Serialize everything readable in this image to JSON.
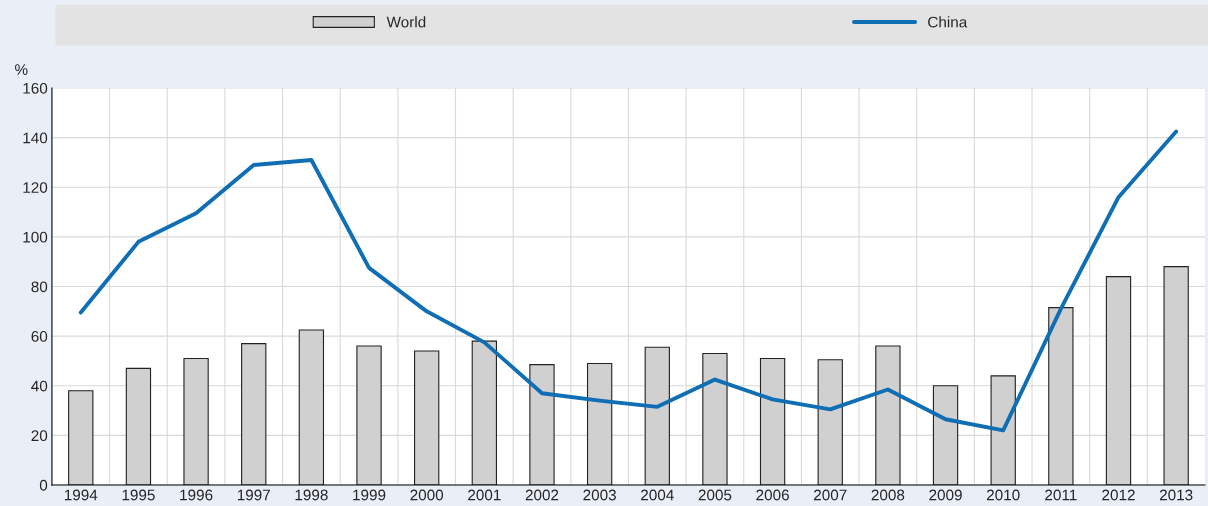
{
  "chart_data": {
    "type": "bar",
    "ylabel": "%",
    "categories": [
      "1994",
      "1995",
      "1996",
      "1997",
      "1998",
      "1999",
      "2000",
      "2001",
      "2002",
      "2003",
      "2004",
      "2005",
      "2006",
      "2007",
      "2008",
      "2009",
      "2010",
      "2011",
      "2012",
      "2013"
    ],
    "series": [
      {
        "name": "World",
        "color": "#d0d0d0",
        "values": [
          38,
          47,
          51,
          57,
          62.5,
          56,
          54,
          58,
          48.5,
          49,
          55.5,
          53,
          51,
          50.5,
          56,
          40,
          44,
          71.5,
          84,
          88
        ]
      },
      {
        "name": "China",
        "type": "line",
        "color": "#0f6eb4",
        "values": [
          69.5,
          98,
          109.5,
          129,
          131,
          87.5,
          70,
          57.5,
          37,
          34,
          31.5,
          42.5,
          34.5,
          30.5,
          38.5,
          26.5,
          22,
          71,
          116,
          142.5
        ]
      }
    ],
    "ylim": [
      0,
      160
    ],
    "yticks": [
      0,
      20,
      40,
      60,
      80,
      100,
      120,
      140,
      160
    ],
    "grid": true,
    "legend": "top",
    "line_style": "solid",
    "marker": "none"
  }
}
